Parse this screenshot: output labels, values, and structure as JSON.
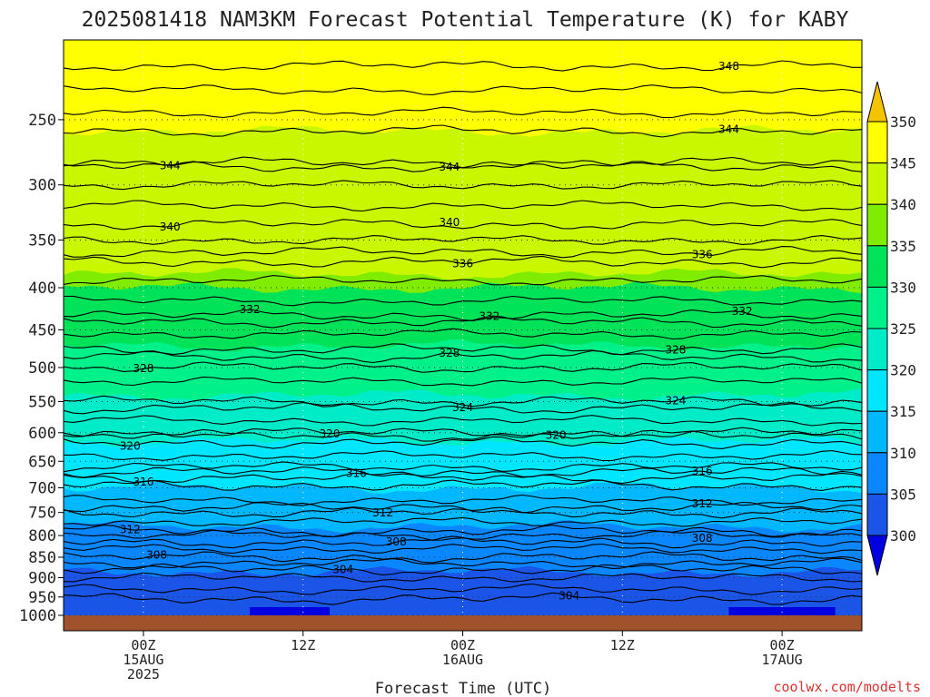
{
  "chart_data": {
    "type": "contour",
    "title": "2025081418 NAM3KM Forecast Potential Temperature (K) for KABY",
    "xlabel": "Forecast Time (UTC)",
    "ylabel": "",
    "credit": "coolwx.com/modelts",
    "x_ticks": [
      {
        "hour": 6,
        "lines": [
          "00Z",
          "15AUG",
          "2025"
        ]
      },
      {
        "hour": 18,
        "lines": [
          "12Z"
        ]
      },
      {
        "hour": 30,
        "lines": [
          "00Z",
          "16AUG"
        ]
      },
      {
        "hour": 42,
        "lines": [
          "12Z"
        ]
      },
      {
        "hour": 54,
        "lines": [
          "00Z",
          "17AUG"
        ]
      }
    ],
    "xlim": [
      0,
      60
    ],
    "y_ticks": [
      250,
      300,
      350,
      400,
      450,
      500,
      550,
      600,
      650,
      700,
      750,
      800,
      850,
      900,
      950,
      1000
    ],
    "ylim": [
      200,
      1000
    ],
    "y_scale": "log-pressure",
    "colorbar": {
      "labels": [
        "350",
        "345",
        "340",
        "335",
        "330",
        "325",
        "320",
        "315",
        "310",
        "305",
        "300"
      ],
      "bins": [
        {
          "min": 345,
          "max": 350,
          "color": "#ffff00"
        },
        {
          "min": 340,
          "max": 345,
          "color": "#c8f700"
        },
        {
          "min": 335,
          "max": 340,
          "color": "#80ec00"
        },
        {
          "min": 330,
          "max": 335,
          "color": "#00e359"
        },
        {
          "min": 325,
          "max": 330,
          "color": "#00f08a"
        },
        {
          "min": 320,
          "max": 325,
          "color": "#00ecc8"
        },
        {
          "min": 315,
          "max": 320,
          "color": "#00e6ff"
        },
        {
          "min": 310,
          "max": 315,
          "color": "#00b8ff"
        },
        {
          "min": 305,
          "max": 310,
          "color": "#0a87ff"
        },
        {
          "min": 300,
          "max": 305,
          "color": "#1a55e8"
        }
      ],
      "over_color": "#f5c400",
      "under_color": "#0000e0"
    },
    "ground_color": "#a0522d",
    "contours": [
      {
        "value": 348,
        "pressure": 215,
        "label_hour": 50
      },
      {
        "value": 344,
        "pressure": 282,
        "label_hour": 8
      },
      {
        "value": 344,
        "pressure": 285,
        "label_hour": 29
      },
      {
        "value": 344,
        "pressure": 258,
        "label_hour": 50
      },
      {
        "value": 340,
        "pressure": 335,
        "label_hour": 8
      },
      {
        "value": 340,
        "pressure": 335,
        "label_hour": 29
      },
      {
        "value": 336,
        "pressure": 372,
        "label_hour": 30
      },
      {
        "value": 336,
        "pressure": 362,
        "label_hour": 48
      },
      {
        "value": 332,
        "pressure": 432,
        "label_hour": 14
      },
      {
        "value": 332,
        "pressure": 440,
        "label_hour": 32
      },
      {
        "value": 332,
        "pressure": 432,
        "label_hour": 51
      },
      {
        "value": 328,
        "pressure": 500,
        "label_hour": 6
      },
      {
        "value": 328,
        "pressure": 485,
        "label_hour": 29
      },
      {
        "value": 328,
        "pressure": 475,
        "label_hour": 46
      },
      {
        "value": 324,
        "pressure": 560,
        "label_hour": 30
      },
      {
        "value": 324,
        "pressure": 550,
        "label_hour": 46
      },
      {
        "value": 320,
        "pressure": 617,
        "label_hour": 5
      },
      {
        "value": 320,
        "pressure": 600,
        "label_hour": 20
      },
      {
        "value": 320,
        "pressure": 605,
        "label_hour": 37
      },
      {
        "value": 316,
        "pressure": 695,
        "label_hour": 6
      },
      {
        "value": 316,
        "pressure": 680,
        "label_hour": 22
      },
      {
        "value": 316,
        "pressure": 670,
        "label_hour": 48
      },
      {
        "value": 312,
        "pressure": 790,
        "label_hour": 5
      },
      {
        "value": 312,
        "pressure": 750,
        "label_hour": 24
      },
      {
        "value": 312,
        "pressure": 740,
        "label_hour": 48
      },
      {
        "value": 308,
        "pressure": 850,
        "label_hour": 7
      },
      {
        "value": 308,
        "pressure": 815,
        "label_hour": 25
      },
      {
        "value": 308,
        "pressure": 815,
        "label_hour": 48
      },
      {
        "value": 304,
        "pressure": 880,
        "label_hour": 21
      },
      {
        "value": 304,
        "pressure": 955,
        "label_hour": 38
      }
    ]
  }
}
